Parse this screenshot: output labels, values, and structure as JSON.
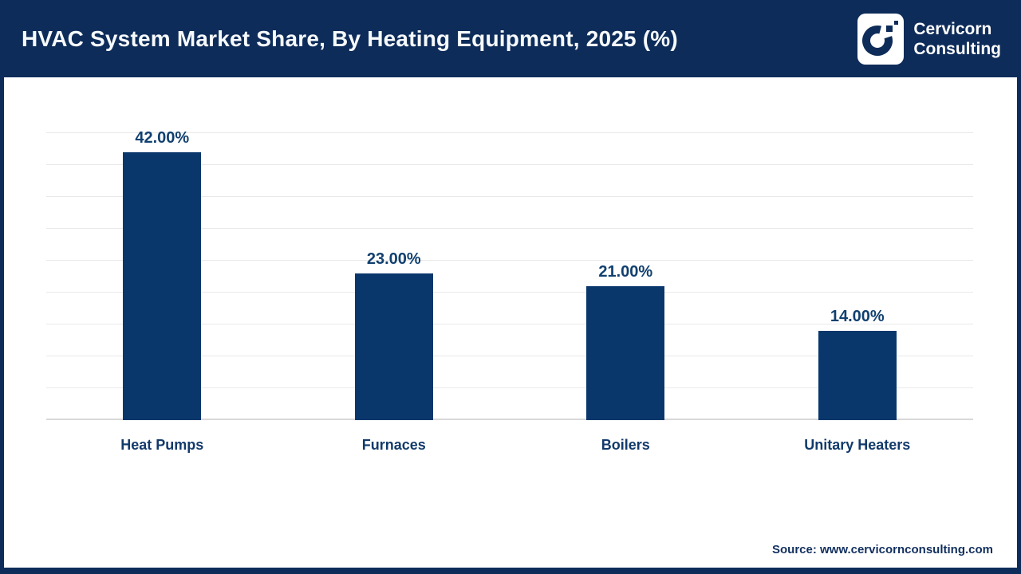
{
  "header": {
    "title": "HVAC System Market Share, By Heating Equipment, 2025 (%)",
    "logo": {
      "line1": "Cervicorn",
      "line2": "Consulting",
      "icon": "cervicorn-c-icon"
    }
  },
  "chart_data": {
    "type": "bar",
    "title": "HVAC System Market Share, By Heating Equipment, 2025 (%)",
    "categories": [
      "Heat Pumps",
      "Furnaces",
      "Boilers",
      "Unitary Heaters"
    ],
    "values": [
      42,
      23,
      21,
      14
    ],
    "value_labels": [
      "42.00%",
      "23.00%",
      "21.00%",
      "14.00%"
    ],
    "xlabel": "",
    "ylabel": "",
    "ylim": [
      0,
      45
    ],
    "gridline_step": 5,
    "grid": true,
    "legend": false
  },
  "footer": {
    "source": "Source: www.cervicornconsulting.com"
  },
  "colors": {
    "header_bg": "#0E2C59",
    "bar": "#09376C",
    "value_label": "#11406F",
    "category_label": "#123A6B",
    "gridline": "#E9E9E9",
    "baseline": "#D8D8D8",
    "title_text": "#F7FAFC"
  }
}
